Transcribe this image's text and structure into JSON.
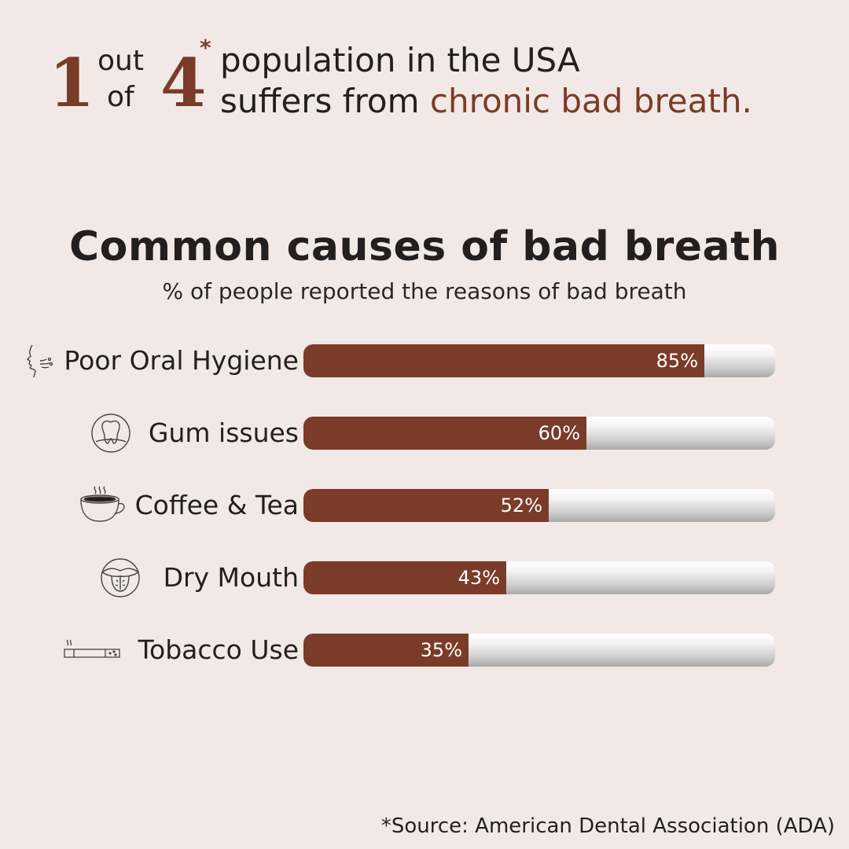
{
  "headline": {
    "num1": "1",
    "word_out": "out",
    "word_of": "of",
    "num4": "4",
    "asterisk": "*",
    "line1": "population in the USA",
    "line2_prefix": "suffers from",
    "line2_accent": "chronic bad breath."
  },
  "chart_data": {
    "type": "bar",
    "orientation": "horizontal",
    "title": "Common causes of bad breath",
    "subtitle": "% of people reported the reasons of bad breath",
    "categories": [
      "Poor Oral Hygiene",
      "Gum issues",
      "Coffee & Tea",
      "Dry Mouth",
      "Tobacco Use"
    ],
    "values": [
      85,
      60,
      52,
      43,
      35
    ],
    "value_labels": [
      "85%",
      "60%",
      "52%",
      "43%",
      "35%"
    ],
    "icons": [
      "breath-face-icon",
      "tooth-icon",
      "coffee-cup-icon",
      "tongue-icon",
      "cigarette-icon"
    ],
    "xlim": [
      0,
      100
    ],
    "grid": false,
    "colors": {
      "bar": "#7a3b28",
      "track": "#c9c9c9",
      "accent": "#7a3b28",
      "background": "#f2e9e6"
    }
  },
  "source": "*Source: American Dental Association (ADA)"
}
